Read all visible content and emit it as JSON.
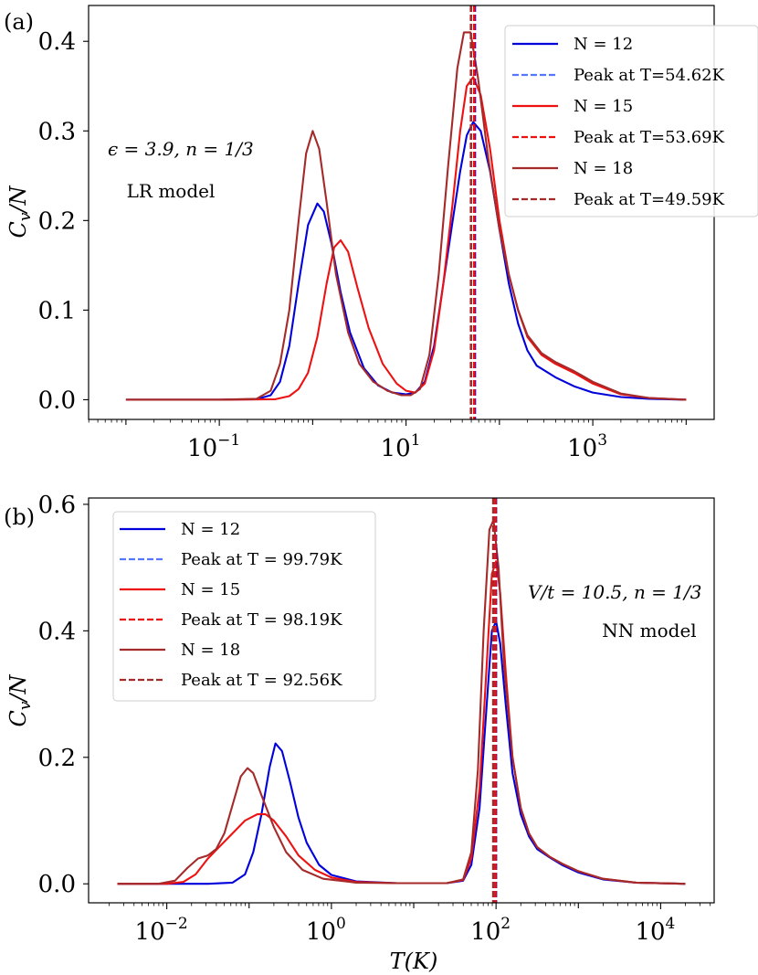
{
  "chart_data": [
    {
      "type": "line",
      "panel_label": "(a)",
      "title": "",
      "xlabel": "",
      "ylabel": "C_v/N",
      "xscale": "log",
      "xlim_log10": [
        -2.4,
        4.3
      ],
      "ylim": [
        -0.022,
        0.44
      ],
      "yticks": [
        0.0,
        0.1,
        0.2,
        0.3,
        0.4
      ],
      "ytick_labels": [
        "0.0",
        "0.1",
        "0.2",
        "0.3",
        "0.4"
      ],
      "xticks_log10": [
        -1,
        1,
        3
      ],
      "xtick_labels": [
        {
          "base": "10",
          "exp": "−1"
        },
        {
          "base": "10",
          "exp": "1"
        },
        {
          "base": "10",
          "exp": "3"
        }
      ],
      "annotations": [
        "ϵ = 3.9, n = 1/3",
        "LR model"
      ],
      "legend_position": "top-right",
      "legend": [
        {
          "label": "N = 12",
          "style": "solid",
          "color": "#0000dd"
        },
        {
          "label": "Peak at T=54.62K",
          "style": "dashed",
          "color": "#0000dd"
        },
        {
          "label": "N = 15",
          "style": "solid",
          "color": "#ee1111"
        },
        {
          "label": "Peak at T=53.69K",
          "style": "dashed",
          "color": "#ee1111"
        },
        {
          "label": "N = 18",
          "style": "solid",
          "color": "#a52a2a"
        },
        {
          "label": "Peak at T=49.59K",
          "style": "dashed",
          "color": "#a52a2a"
        }
      ],
      "peaks": [
        {
          "T": 54.62,
          "color": "#0000dd"
        },
        {
          "T": 53.69,
          "color": "#ee1111"
        },
        {
          "T": 49.59,
          "color": "#a52a2a"
        }
      ],
      "series": [
        {
          "name": "N = 12",
          "color": "#0000dd",
          "points": [
            [
              -2,
              0
            ],
            [
              -1,
              0
            ],
            [
              -0.6,
              0.0005
            ],
            [
              -0.45,
              0.005
            ],
            [
              -0.35,
              0.02
            ],
            [
              -0.25,
              0.06
            ],
            [
              -0.15,
              0.13
            ],
            [
              -0.05,
              0.195
            ],
            [
              0.05,
              0.219
            ],
            [
              0.12,
              0.21
            ],
            [
              0.2,
              0.175
            ],
            [
              0.3,
              0.12
            ],
            [
              0.4,
              0.075
            ],
            [
              0.55,
              0.035
            ],
            [
              0.7,
              0.016
            ],
            [
              0.85,
              0.008
            ],
            [
              1.0,
              0.006
            ],
            [
              1.1,
              0.008
            ],
            [
              1.2,
              0.02
            ],
            [
              1.3,
              0.06
            ],
            [
              1.4,
              0.13
            ],
            [
              1.5,
              0.2
            ],
            [
              1.58,
              0.255
            ],
            [
              1.65,
              0.295
            ],
            [
              1.72,
              0.31
            ],
            [
              1.8,
              0.3
            ],
            [
              1.9,
              0.255
            ],
            [
              2.0,
              0.19
            ],
            [
              2.1,
              0.13
            ],
            [
              2.2,
              0.085
            ],
            [
              2.3,
              0.055
            ],
            [
              2.4,
              0.038
            ],
            [
              2.6,
              0.025
            ],
            [
              2.8,
              0.015
            ],
            [
              3.0,
              0.008
            ],
            [
              3.3,
              0.003
            ],
            [
              3.6,
              0.001
            ],
            [
              4.0,
              0
            ]
          ]
        },
        {
          "name": "N = 15",
          "color": "#ee1111",
          "points": [
            [
              -2,
              0
            ],
            [
              -1,
              0
            ],
            [
              -0.4,
              0.0005
            ],
            [
              -0.25,
              0.004
            ],
            [
              -0.15,
              0.012
            ],
            [
              -0.05,
              0.03
            ],
            [
              0.05,
              0.07
            ],
            [
              0.15,
              0.13
            ],
            [
              0.23,
              0.17
            ],
            [
              0.3,
              0.178
            ],
            [
              0.38,
              0.165
            ],
            [
              0.48,
              0.125
            ],
            [
              0.6,
              0.08
            ],
            [
              0.75,
              0.04
            ],
            [
              0.9,
              0.018
            ],
            [
              1.0,
              0.01
            ],
            [
              1.1,
              0.008
            ],
            [
              1.2,
              0.018
            ],
            [
              1.3,
              0.055
            ],
            [
              1.4,
              0.13
            ],
            [
              1.5,
              0.22
            ],
            [
              1.58,
              0.3
            ],
            [
              1.65,
              0.35
            ],
            [
              1.72,
              0.36
            ],
            [
              1.8,
              0.34
            ],
            [
              1.9,
              0.28
            ],
            [
              2.0,
              0.2
            ],
            [
              2.1,
              0.14
            ],
            [
              2.2,
              0.1
            ],
            [
              2.3,
              0.07
            ],
            [
              2.45,
              0.05
            ],
            [
              2.6,
              0.04
            ],
            [
              2.8,
              0.03
            ],
            [
              3.0,
              0.018
            ],
            [
              3.3,
              0.006
            ],
            [
              3.6,
              0.002
            ],
            [
              4.0,
              0
            ]
          ]
        },
        {
          "name": "N = 18",
          "color": "#a52a2a",
          "points": [
            [
              -2,
              0
            ],
            [
              -1,
              0
            ],
            [
              -0.6,
              0.001
            ],
            [
              -0.45,
              0.01
            ],
            [
              -0.35,
              0.04
            ],
            [
              -0.25,
              0.1
            ],
            [
              -0.15,
              0.2
            ],
            [
              -0.07,
              0.275
            ],
            [
              0,
              0.3
            ],
            [
              0.07,
              0.28
            ],
            [
              0.15,
              0.22
            ],
            [
              0.25,
              0.14
            ],
            [
              0.38,
              0.075
            ],
            [
              0.5,
              0.04
            ],
            [
              0.65,
              0.02
            ],
            [
              0.8,
              0.01
            ],
            [
              0.95,
              0.005
            ],
            [
              1.05,
              0.005
            ],
            [
              1.15,
              0.012
            ],
            [
              1.25,
              0.05
            ],
            [
              1.35,
              0.14
            ],
            [
              1.45,
              0.26
            ],
            [
              1.55,
              0.37
            ],
            [
              1.62,
              0.41
            ],
            [
              1.69,
              0.41
            ],
            [
              1.77,
              0.36
            ],
            [
              1.88,
              0.27
            ],
            [
              2.0,
              0.19
            ],
            [
              2.1,
              0.14
            ],
            [
              2.2,
              0.1
            ],
            [
              2.3,
              0.072
            ],
            [
              2.45,
              0.052
            ],
            [
              2.6,
              0.042
            ],
            [
              2.8,
              0.032
            ],
            [
              3.0,
              0.02
            ],
            [
              3.3,
              0.007
            ],
            [
              3.6,
              0.002
            ],
            [
              4.0,
              0
            ]
          ]
        }
      ]
    },
    {
      "type": "line",
      "panel_label": "(b)",
      "title": "",
      "xlabel": "T(K)",
      "ylabel": "C_v/N",
      "xscale": "log",
      "xlim_log10": [
        -2.95,
        4.65
      ],
      "ylim": [
        -0.03,
        0.61
      ],
      "yticks": [
        0.0,
        0.2,
        0.4,
        0.6
      ],
      "ytick_labels": [
        "0.0",
        "0.2",
        "0.4",
        "0.6"
      ],
      "xticks_log10": [
        -2,
        0,
        2,
        4
      ],
      "xtick_labels": [
        {
          "base": "10",
          "exp": "−2"
        },
        {
          "base": "10",
          "exp": "0"
        },
        {
          "base": "10",
          "exp": "2"
        },
        {
          "base": "10",
          "exp": "4"
        }
      ],
      "annotations": [
        "V/t = 10.5, n = 1/3",
        "NN model"
      ],
      "legend_position": "top-left",
      "legend": [
        {
          "label": "N = 12",
          "style": "solid",
          "color": "#0000dd"
        },
        {
          "label": "Peak at T = 99.79K",
          "style": "dashed",
          "color": "#0000dd"
        },
        {
          "label": "N = 15",
          "style": "solid",
          "color": "#ee1111"
        },
        {
          "label": "Peak at T = 98.19K",
          "style": "dashed",
          "color": "#ee1111"
        },
        {
          "label": "N = 18",
          "style": "solid",
          "color": "#a52a2a"
        },
        {
          "label": "Peak at T = 92.56K",
          "style": "dashed",
          "color": "#a52a2a"
        }
      ],
      "peaks": [
        {
          "T": 99.79,
          "color": "#0000dd"
        },
        {
          "T": 98.19,
          "color": "#ee1111"
        },
        {
          "T": 92.56,
          "color": "#a52a2a"
        }
      ],
      "series": [
        {
          "name": "N = 12",
          "color": "#0000dd",
          "points": [
            [
              -2.6,
              0
            ],
            [
              -1.5,
              0
            ],
            [
              -1.2,
              0.002
            ],
            [
              -1.05,
              0.015
            ],
            [
              -0.95,
              0.05
            ],
            [
              -0.85,
              0.11
            ],
            [
              -0.75,
              0.185
            ],
            [
              -0.68,
              0.222
            ],
            [
              -0.6,
              0.21
            ],
            [
              -0.5,
              0.16
            ],
            [
              -0.4,
              0.105
            ],
            [
              -0.3,
              0.065
            ],
            [
              -0.15,
              0.03
            ],
            [
              0,
              0.014
            ],
            [
              0.3,
              0.004
            ],
            [
              0.8,
              0.001
            ],
            [
              1.4,
              0.001
            ],
            [
              1.6,
              0.005
            ],
            [
              1.7,
              0.03
            ],
            [
              1.8,
              0.12
            ],
            [
              1.88,
              0.27
            ],
            [
              1.95,
              0.4
            ],
            [
              2.0,
              0.415
            ],
            [
              2.05,
              0.38
            ],
            [
              2.12,
              0.28
            ],
            [
              2.2,
              0.175
            ],
            [
              2.3,
              0.11
            ],
            [
              2.4,
              0.075
            ],
            [
              2.5,
              0.055
            ],
            [
              2.65,
              0.042
            ],
            [
              2.8,
              0.03
            ],
            [
              3.0,
              0.018
            ],
            [
              3.3,
              0.007
            ],
            [
              3.7,
              0.002
            ],
            [
              4.3,
              0
            ]
          ]
        },
        {
          "name": "N = 15",
          "color": "#ee1111",
          "points": [
            [
              -2.6,
              0
            ],
            [
              -2.0,
              0
            ],
            [
              -1.8,
              0.003
            ],
            [
              -1.65,
              0.015
            ],
            [
              -1.5,
              0.04
            ],
            [
              -1.35,
              0.06
            ],
            [
              -1.2,
              0.08
            ],
            [
              -1.05,
              0.1
            ],
            [
              -0.9,
              0.11
            ],
            [
              -0.8,
              0.11
            ],
            [
              -0.7,
              0.1
            ],
            [
              -0.55,
              0.075
            ],
            [
              -0.4,
              0.045
            ],
            [
              -0.2,
              0.022
            ],
            [
              0,
              0.01
            ],
            [
              0.3,
              0.003
            ],
            [
              0.8,
              0.001
            ],
            [
              1.4,
              0.001
            ],
            [
              1.6,
              0.006
            ],
            [
              1.7,
              0.04
            ],
            [
              1.8,
              0.15
            ],
            [
              1.88,
              0.33
            ],
            [
              1.95,
              0.49
            ],
            [
              2.0,
              0.51
            ],
            [
              2.05,
              0.46
            ],
            [
              2.12,
              0.33
            ],
            [
              2.2,
              0.2
            ],
            [
              2.3,
              0.12
            ],
            [
              2.4,
              0.08
            ],
            [
              2.5,
              0.058
            ],
            [
              2.65,
              0.043
            ],
            [
              2.8,
              0.032
            ],
            [
              3.0,
              0.02
            ],
            [
              3.3,
              0.008
            ],
            [
              3.7,
              0.002
            ],
            [
              4.3,
              0
            ]
          ]
        },
        {
          "name": "N = 18",
          "color": "#a52a2a",
          "points": [
            [
              -2.6,
              0
            ],
            [
              -2.1,
              0
            ],
            [
              -1.9,
              0.005
            ],
            [
              -1.75,
              0.025
            ],
            [
              -1.62,
              0.04
            ],
            [
              -1.5,
              0.045
            ],
            [
              -1.4,
              0.055
            ],
            [
              -1.3,
              0.08
            ],
            [
              -1.2,
              0.125
            ],
            [
              -1.1,
              0.17
            ],
            [
              -1.02,
              0.183
            ],
            [
              -0.95,
              0.175
            ],
            [
              -0.85,
              0.14
            ],
            [
              -0.7,
              0.09
            ],
            [
              -0.55,
              0.05
            ],
            [
              -0.35,
              0.022
            ],
            [
              -0.1,
              0.008
            ],
            [
              0.3,
              0.002
            ],
            [
              0.8,
              0.001
            ],
            [
              1.4,
              0.001
            ],
            [
              1.6,
              0.007
            ],
            [
              1.7,
              0.05
            ],
            [
              1.78,
              0.18
            ],
            [
              1.85,
              0.4
            ],
            [
              1.92,
              0.56
            ],
            [
              1.97,
              0.575
            ],
            [
              2.03,
              0.5
            ],
            [
              2.1,
              0.34
            ],
            [
              2.2,
              0.2
            ],
            [
              2.3,
              0.12
            ],
            [
              2.4,
              0.08
            ],
            [
              2.5,
              0.058
            ],
            [
              2.65,
              0.043
            ],
            [
              2.8,
              0.032
            ],
            [
              3.0,
              0.02
            ],
            [
              3.3,
              0.008
            ],
            [
              3.7,
              0.002
            ],
            [
              4.3,
              0
            ]
          ]
        }
      ]
    }
  ]
}
